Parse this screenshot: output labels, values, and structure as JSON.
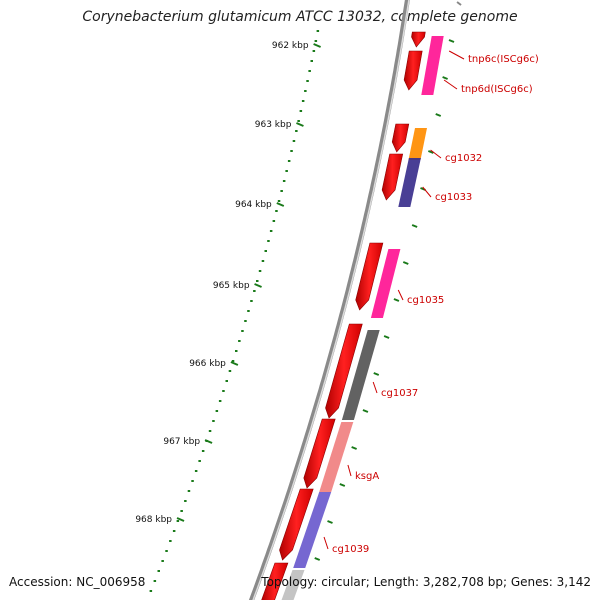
{
  "title": "Corynebacterium glutamicum ATCC 13032, complete genome",
  "accession": {
    "label": "Accession:",
    "value": "NC_006958"
  },
  "topology": {
    "topology_label": "Topology:",
    "topology_value": "circular;",
    "length_label": "Length:",
    "length_value": "3,282,708 bp;",
    "genes_label": "Genes:",
    "genes_value": "3,142"
  },
  "ticks": [
    "962 kbp",
    "963 kbp",
    "964 kbp",
    "965 kbp",
    "966 kbp",
    "967 kbp",
    "968 kbp"
  ],
  "genes": [
    "tnp6c(ISCg6c)",
    "tnp6d(ISCg6c)",
    "cg1032",
    "cg1033",
    "cg1035",
    "cg1037",
    "ksgA",
    "cg1039"
  ],
  "colors": {
    "cds": "#ff0000",
    "backbone": "#8a8a8a",
    "tick": "#1a7a1a",
    "label": "#cc0000",
    "pink": "#ff1493",
    "orange": "#ff8c00",
    "navy": "#3a2f8c",
    "dark_gray": "#555555",
    "salmon": "#f08080",
    "lavender": "#6a5acd",
    "light_gray": "#bfbfbf"
  }
}
